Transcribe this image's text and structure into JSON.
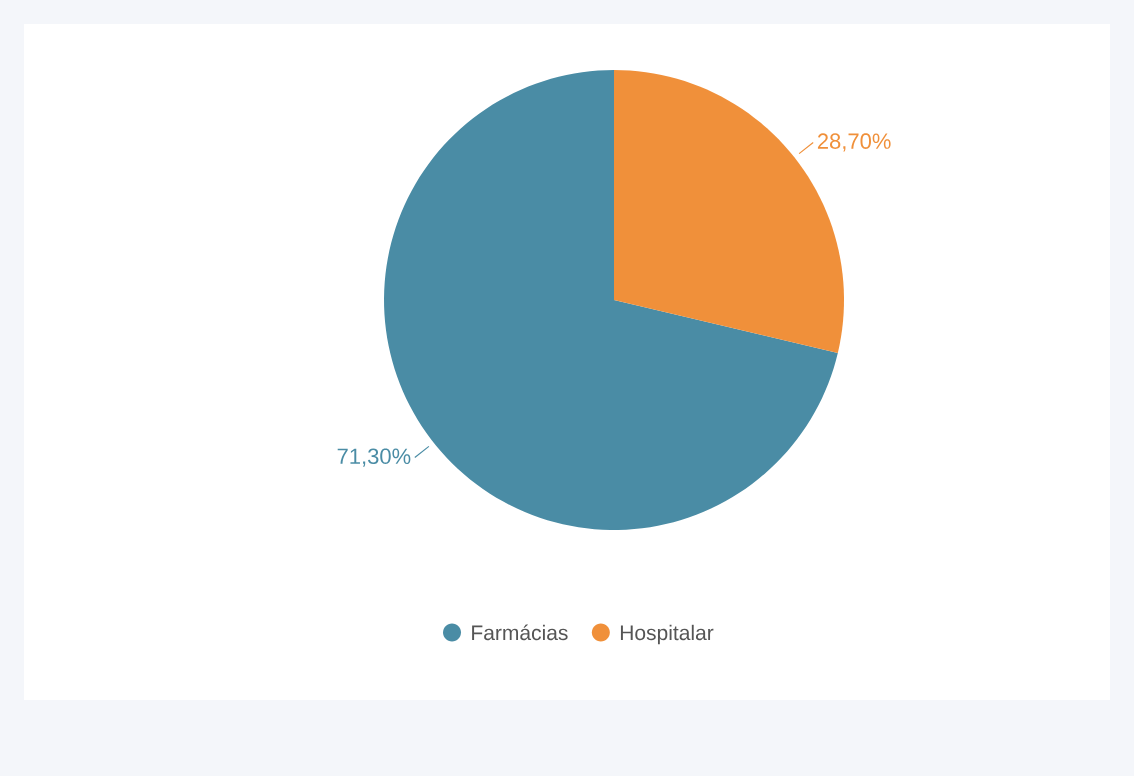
{
  "chart_data": {
    "type": "pie",
    "categories": [
      "Farmácias",
      "Hospitalar"
    ],
    "values": [
      71.3,
      28.7
    ],
    "colors": [
      "#4a8ca5",
      "#f0903a"
    ],
    "value_labels": [
      "71,30%",
      "28,70%"
    ],
    "legend": "bottom"
  }
}
